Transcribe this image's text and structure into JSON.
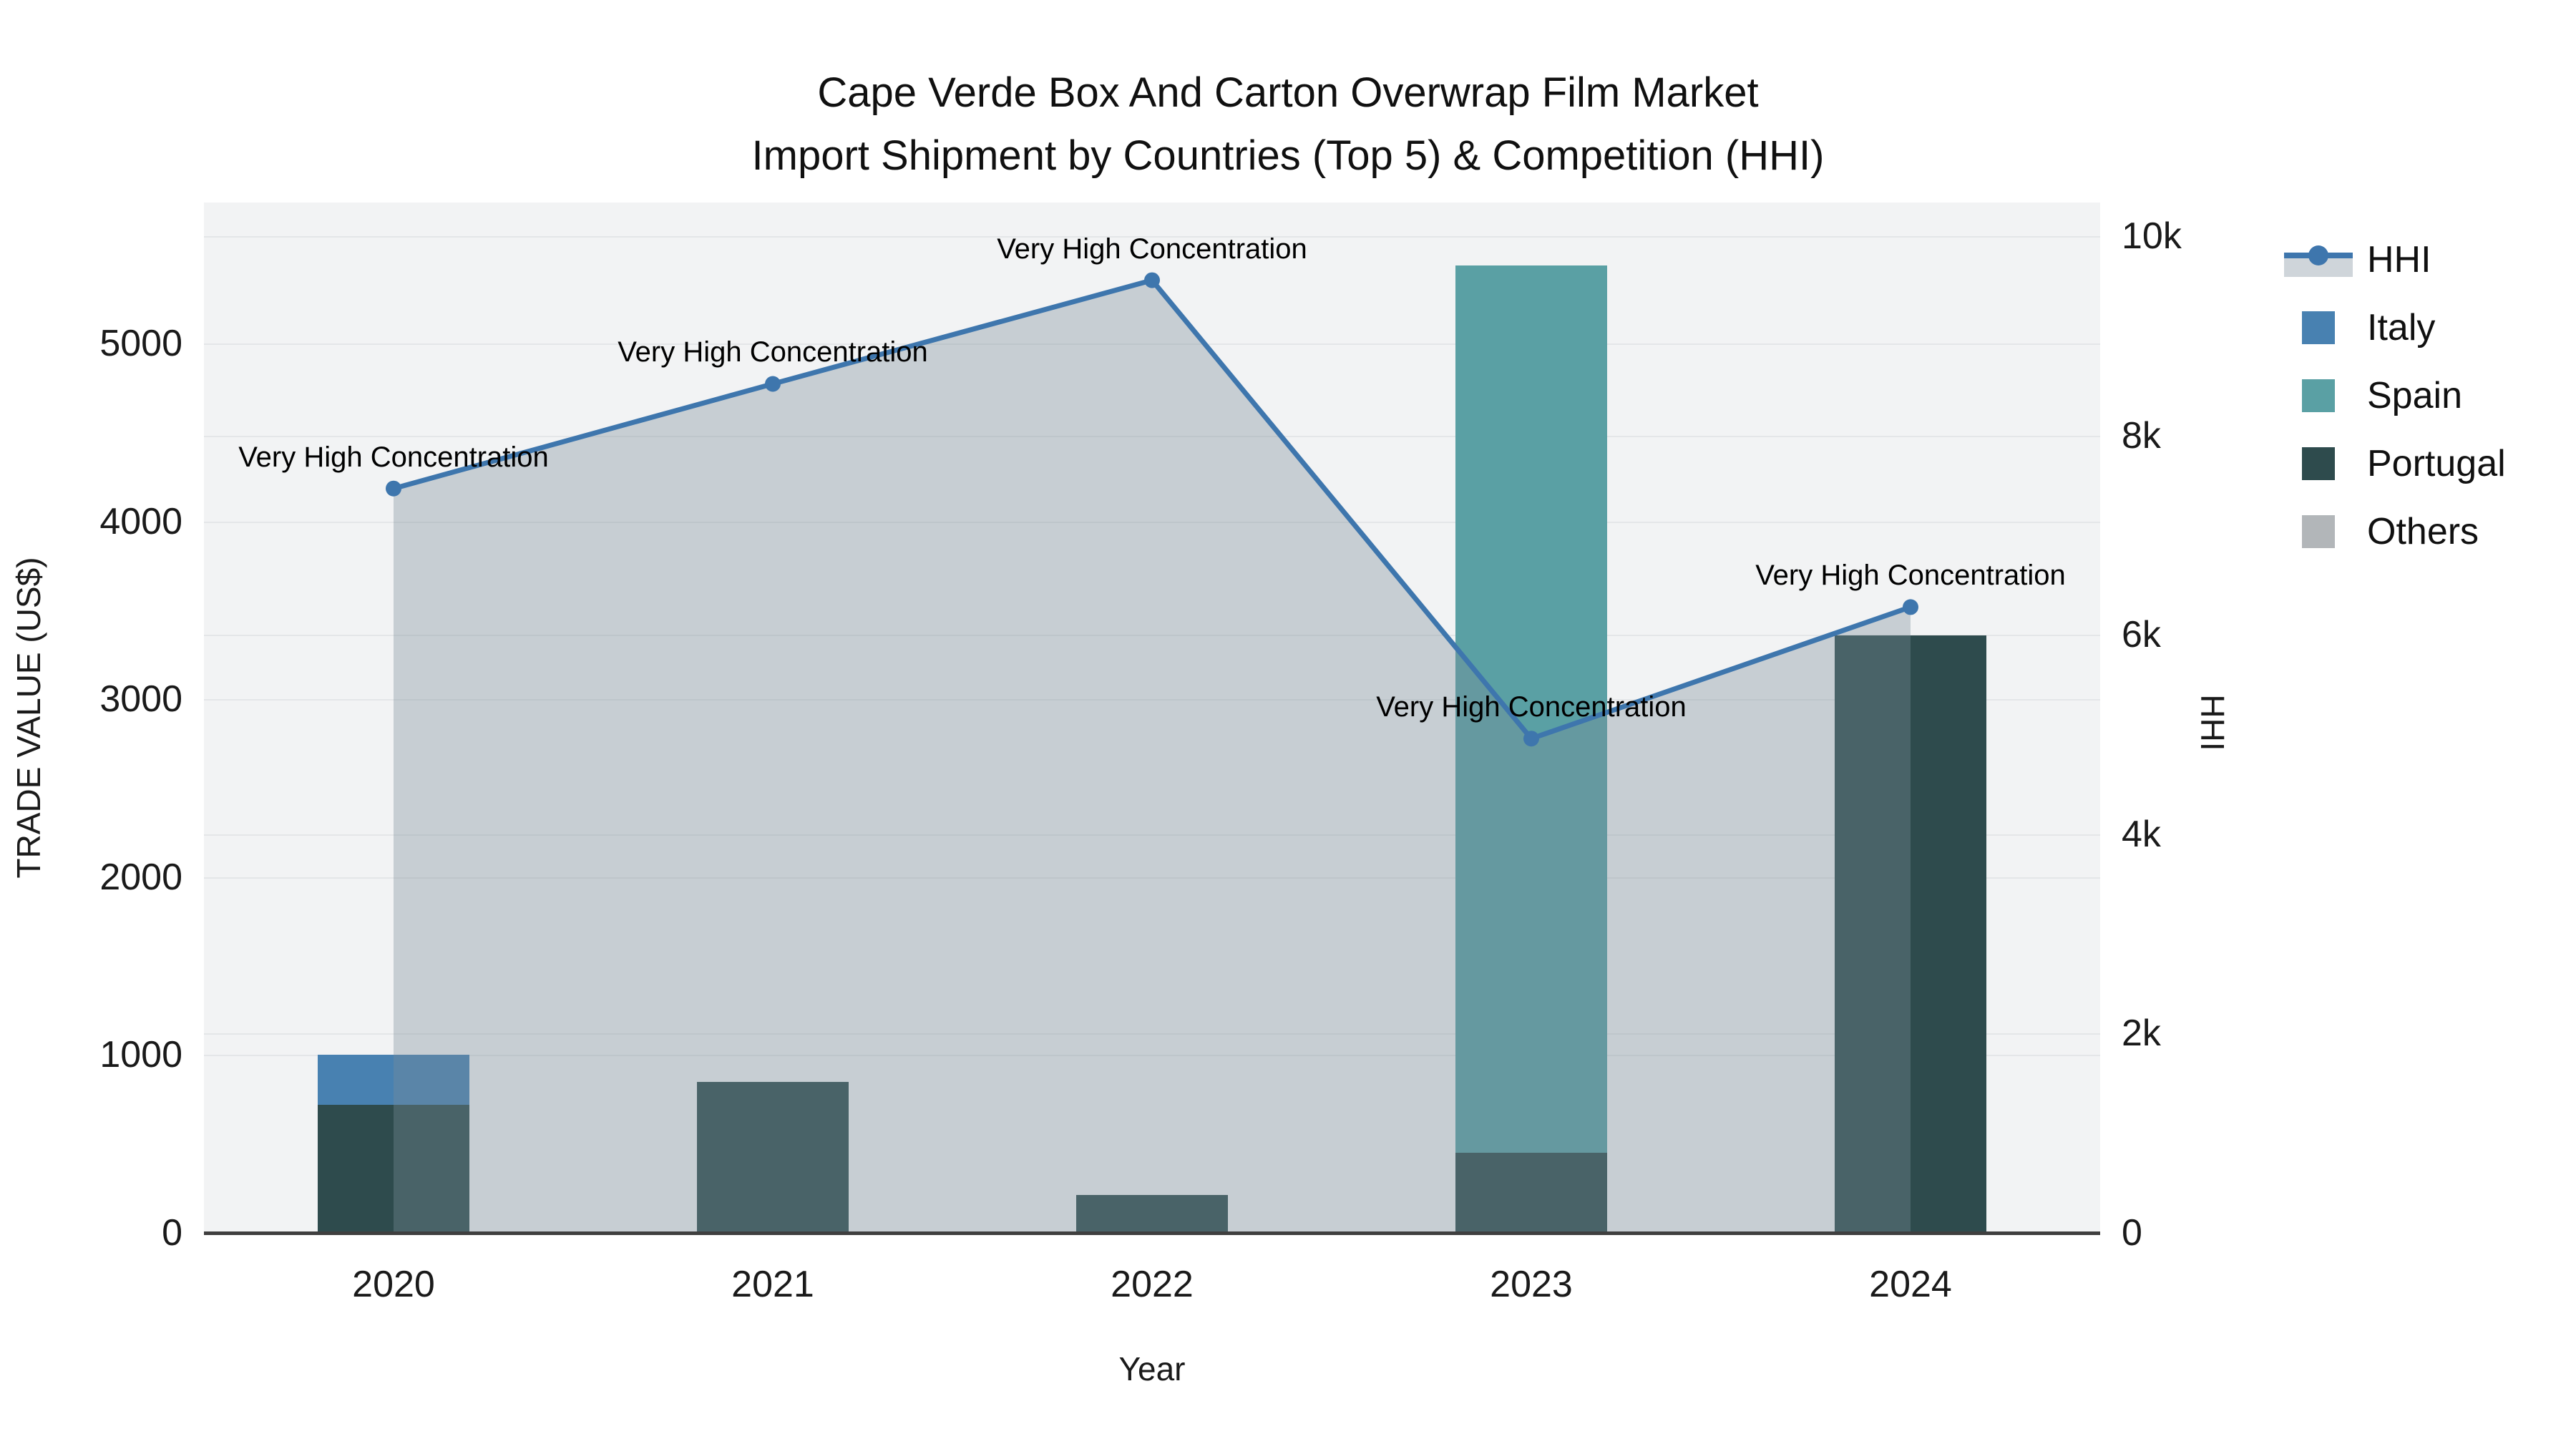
{
  "title": {
    "line1": "Cape Verde Box And Carton Overwrap Film Market",
    "line2": "Import Shipment by Countries (Top 5) & Competition (HHI)"
  },
  "axes": {
    "x": {
      "title": "Year",
      "categories": [
        "2020",
        "2021",
        "2022",
        "2023",
        "2024"
      ]
    },
    "y_left": {
      "title": "TRADE VALUE (US$)",
      "max": 5792,
      "ticks": [
        {
          "v": 0,
          "label": "0"
        },
        {
          "v": 1000,
          "label": "1000"
        },
        {
          "v": 2000,
          "label": "2000"
        },
        {
          "v": 3000,
          "label": "3000"
        },
        {
          "v": 4000,
          "label": "4000"
        },
        {
          "v": 5000,
          "label": "5000"
        }
      ]
    },
    "y_right": {
      "title": "HHI",
      "max": 10340,
      "ticks": [
        {
          "v": 0,
          "label": "0"
        },
        {
          "v": 2000,
          "label": "2k"
        },
        {
          "v": 4000,
          "label": "4k"
        },
        {
          "v": 6000,
          "label": "6k"
        },
        {
          "v": 8000,
          "label": "8k"
        },
        {
          "v": 10000,
          "label": "10k"
        }
      ]
    }
  },
  "legend": {
    "items": [
      {
        "label": "HHI",
        "type": "line",
        "color": "#3e76ad",
        "fill": "#cfd5da"
      },
      {
        "label": "Italy",
        "type": "square",
        "color": "#4881b1"
      },
      {
        "label": "Spain",
        "type": "square",
        "color": "#5aa0a4"
      },
      {
        "label": "Portugal",
        "type": "square",
        "color": "#2e4b4d"
      },
      {
        "label": "Others",
        "type": "square",
        "color": "#b2b6b9"
      }
    ]
  },
  "chart_data": {
    "type": "combo-bar-line",
    "title": "Cape Verde Box And Carton Overwrap Film Market Import Shipment by Countries (Top 5) & Competition (HHI)",
    "categories": [
      "2020",
      "2021",
      "2022",
      "2023",
      "2024"
    ],
    "xlabel": "Year",
    "ylabel_left": "TRADE VALUE (US$)",
    "ylabel_right": "HHI",
    "ylim_left": [
      0,
      5792
    ],
    "ylim_right": [
      0,
      10340
    ],
    "grid": true,
    "legend_position": "right",
    "bar_mode": "overlay",
    "bar_series": [
      {
        "name": "Italy",
        "color": "#4881b1",
        "values": [
          1000,
          0,
          0,
          0,
          0
        ]
      },
      {
        "name": "Spain",
        "color": "#5aa0a4",
        "values": [
          0,
          0,
          0,
          5440,
          0
        ]
      },
      {
        "name": "Portugal",
        "color": "#2e4b4d",
        "values": [
          720,
          850,
          215,
          450,
          3360
        ]
      },
      {
        "name": "Others",
        "color": "#b2b6b9",
        "values": [
          0,
          0,
          0,
          0,
          0
        ]
      }
    ],
    "line_series": {
      "name": "HHI",
      "axis": "right",
      "color": "#3e76ad",
      "area_fill_color": "rgba(122,140,152,0.36)",
      "values": [
        7470,
        8520,
        9560,
        4960,
        6280
      ]
    },
    "annotations": [
      {
        "category": "2020",
        "text": "Very High Concentration"
      },
      {
        "category": "2021",
        "text": "Very High Concentration"
      },
      {
        "category": "2022",
        "text": "Very High Concentration"
      },
      {
        "category": "2023",
        "text": "Very High Concentration"
      },
      {
        "category": "2024",
        "text": "Very High Concentration"
      }
    ]
  },
  "colors": {
    "plot_bg": "#f2f3f4",
    "grid": "#e4e6e8",
    "axis_line": "#3f3f3f"
  }
}
